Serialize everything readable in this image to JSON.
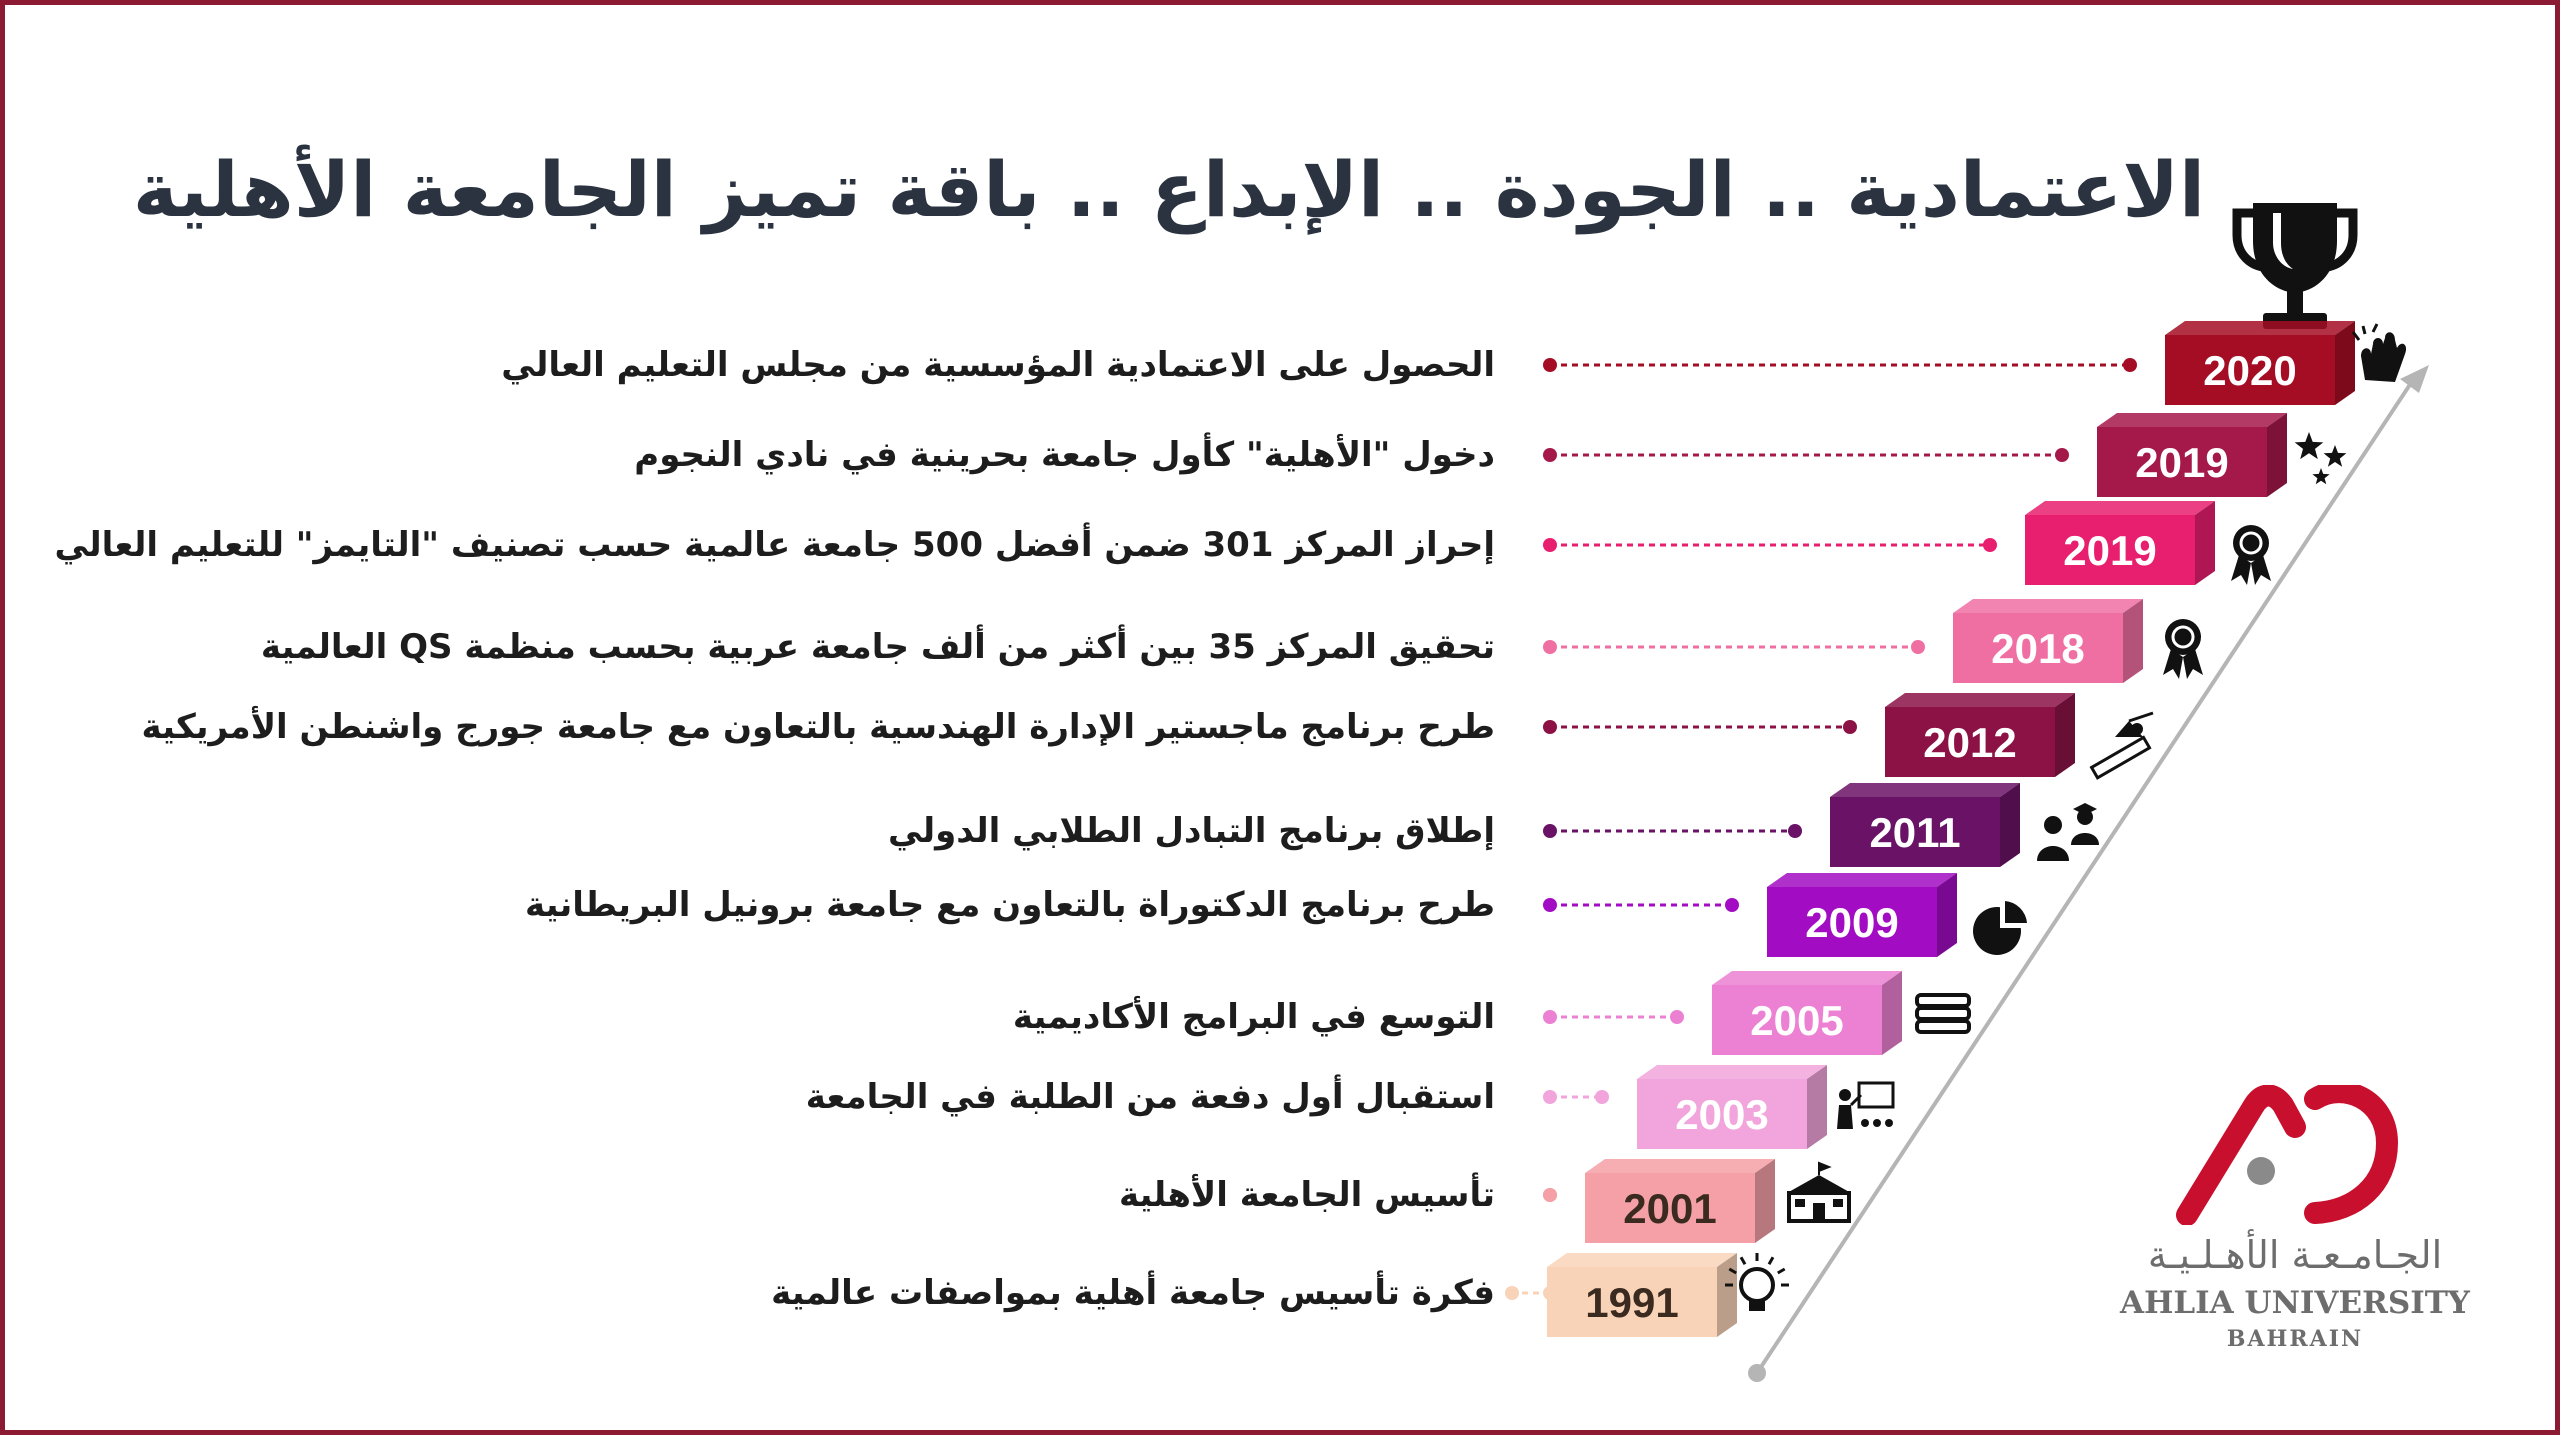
{
  "title": "الاعتمادية .. الجودة .. الإبداع .. باقة تميز الجامعة الأهلية",
  "timeline": [
    {
      "year": "2020",
      "text": "الحصول على الاعتمادية المؤسسية من مجلس التعليم العالي",
      "color": "#a50d24",
      "icon": "clapping-hands-icon"
    },
    {
      "year": "2019",
      "text": "دخول \"الأهلية\" كأول جامعة بحرينية في نادي النجوم",
      "color": "#a5184a",
      "icon": "stars-icon"
    },
    {
      "year": "2019",
      "text": "إحراز المركز 301 ضمن أفضل 500 جامعة عالمية حسب تصنيف \"التايمز\" للتعليم العالي",
      "color": "#e81e6e",
      "icon": "award-ribbon-icon"
    },
    {
      "year": "2018",
      "text": "تحقيق المركز 35 بين أكثر من ألف جامعة عربية بحسب منظمة QS العالمية",
      "color": "#f06fa3",
      "icon": "award-ribbon-icon"
    },
    {
      "year": "2012",
      "text": "طرح برنامج ماجستير الإدارة الهندسية بالتعاون مع جامعة جورج واشنطن الأمريكية",
      "color": "#8c1246",
      "icon": "engineering-tools-icon"
    },
    {
      "year": "2011",
      "text": "إطلاق برنامج التبادل الطلابي الدولي",
      "color": "#6a1266",
      "icon": "students-icon"
    },
    {
      "year": "2009",
      "text": "طرح برنامج الدكتوراة بالتعاون مع جامعة برونيل البريطانية",
      "color": "#a20cc3",
      "icon": "pie-chart-icon"
    },
    {
      "year": "2005",
      "text": "التوسع في البرامج الأكاديمية",
      "color": "#ec80d2",
      "icon": "books-icon"
    },
    {
      "year": "2003",
      "text": "استقبال أول دفعة من الطلبة في الجامعة",
      "color": "#f2a4dc",
      "icon": "classroom-icon"
    },
    {
      "year": "2001",
      "text": "تأسيس الجامعة الأهلية",
      "color": "#f4a0a6",
      "icon": "school-building-icon"
    },
    {
      "year": "1991",
      "text": "فكرة تأسيس جامعة أهلية بمواصفات عالمية",
      "color": "#f9d3b7",
      "icon": "lightbulb-icon"
    }
  ],
  "logo": {
    "arabic": "الجـامـعـة الأهـلـيـة",
    "english": "AHLIA UNIVERSITY",
    "country": "BAHRAIN",
    "colors": {
      "red": "#c8102e",
      "grey": "#6d6d6d"
    }
  },
  "colors": {
    "title": "#2b3340",
    "frame": "#8b1a32",
    "trophy": "#111111",
    "arrow": "#b5b5b5"
  }
}
